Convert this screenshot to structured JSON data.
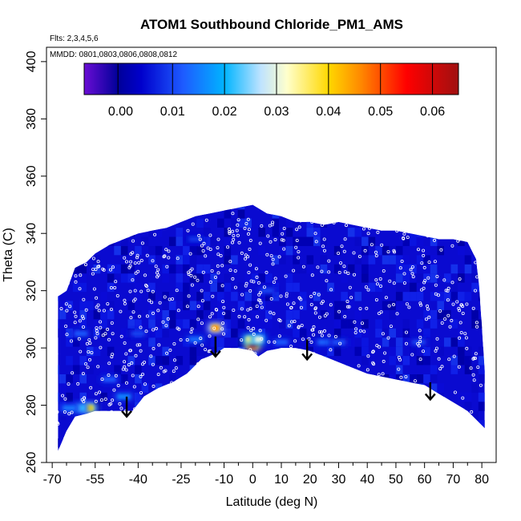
{
  "chart_data": {
    "type": "heatmap",
    "title": "ATOM1 Southbound Chloride_PM1_AMS",
    "flights_note": "Flts: 2,3,4,5,6",
    "dates_note": "MMDD: 0801,0803,0806,0808,0812",
    "xlabel": "Latitude (deg N)",
    "ylabel": "Theta (C)",
    "xlim": [
      -72,
      85
    ],
    "ylim": [
      260,
      405
    ],
    "x_ticks_major": [
      -70,
      -55,
      -40,
      -25,
      -10,
      0,
      10,
      20,
      30,
      40,
      50,
      60,
      70,
      80
    ],
    "x_tick_labels": [
      "-70",
      "-55",
      "-40",
      "-25",
      "-10",
      "0",
      "10",
      "20",
      "30",
      "40",
      "50",
      "60",
      "70",
      "80"
    ],
    "x_ticks_minor": [
      -65,
      -60,
      -50,
      -45,
      -35,
      -30,
      -20,
      -15,
      -5,
      5,
      15,
      25,
      35,
      45,
      55,
      65,
      75
    ],
    "y_ticks": [
      260,
      280,
      300,
      320,
      340,
      360,
      380,
      400
    ],
    "y_tick_labels": [
      "260",
      "280",
      "300",
      "320",
      "340",
      "360",
      "380",
      "400"
    ],
    "colorbar": {
      "range": [
        -0.007,
        0.065
      ],
      "ticks": [
        0.0,
        0.01,
        0.02,
        0.03,
        0.04,
        0.05,
        0.06
      ],
      "tick_labels": [
        "0.00",
        "0.01",
        "0.02",
        "0.03",
        "0.04",
        "0.05",
        "0.06"
      ],
      "divisions": [
        -0.0005,
        0.01,
        0.02,
        0.03,
        0.04,
        0.05,
        0.06
      ],
      "colors": [
        "#6a0dd4",
        "#000099",
        "#0000cc",
        "#1e5bff",
        "#00b4ff",
        "#bfe3ff",
        "#ffffcc",
        "#ffd800",
        "#ff8c00",
        "#ff0000",
        "#a01010"
      ],
      "color_stops": [
        -0.007,
        -0.0005,
        0.004,
        0.012,
        0.02,
        0.027,
        0.032,
        0.04,
        0.046,
        0.055,
        0.065
      ]
    },
    "domain_top": [
      [
        -68,
        318
      ],
      [
        -65,
        320
      ],
      [
        -62,
        328
      ],
      [
        -58,
        330
      ],
      [
        -55,
        333
      ],
      [
        -50,
        336
      ],
      [
        -45,
        338
      ],
      [
        -40,
        340
      ],
      [
        -35,
        341
      ],
      [
        -30,
        342
      ],
      [
        -25,
        344
      ],
      [
        -20,
        346
      ],
      [
        -15,
        347
      ],
      [
        -10,
        348
      ],
      [
        -5,
        349
      ],
      [
        0,
        350
      ],
      [
        5,
        347
      ],
      [
        10,
        346
      ],
      [
        15,
        344
      ],
      [
        20,
        344
      ],
      [
        25,
        343
      ],
      [
        30,
        344
      ],
      [
        35,
        343
      ],
      [
        40,
        342
      ],
      [
        45,
        341
      ],
      [
        50,
        341
      ],
      [
        55,
        340
      ],
      [
        60,
        339
      ],
      [
        65,
        338
      ],
      [
        70,
        338
      ],
      [
        75,
        337
      ],
      [
        78,
        331
      ],
      [
        79,
        322
      ],
      [
        80,
        308
      ],
      [
        81,
        292
      ],
      [
        81,
        272
      ]
    ],
    "domain_bottom": [
      [
        -68,
        264
      ],
      [
        -65,
        271
      ],
      [
        -62,
        276
      ],
      [
        -58,
        277
      ],
      [
        -55,
        278
      ],
      [
        -50,
        278
      ],
      [
        -45,
        278
      ],
      [
        -42,
        278
      ],
      [
        -38,
        283
      ],
      [
        -33,
        286
      ],
      [
        -28,
        288
      ],
      [
        -23,
        291
      ],
      [
        -18,
        296
      ],
      [
        -13,
        298
      ],
      [
        -10,
        300
      ],
      [
        -5,
        300
      ],
      [
        0,
        299
      ],
      [
        2,
        297
      ],
      [
        5,
        299
      ],
      [
        10,
        300
      ],
      [
        15,
        300
      ],
      [
        20,
        299
      ],
      [
        25,
        297
      ],
      [
        30,
        295
      ],
      [
        35,
        293
      ],
      [
        40,
        291
      ],
      [
        45,
        290
      ],
      [
        50,
        289
      ],
      [
        55,
        288
      ],
      [
        60,
        287
      ],
      [
        65,
        284
      ],
      [
        70,
        281
      ],
      [
        75,
        278
      ],
      [
        78,
        275
      ],
      [
        81,
        272
      ]
    ],
    "hotspots": [
      {
        "lat": 0,
        "theta": 301,
        "value": 0.062
      },
      {
        "lat": -1,
        "theta": 303,
        "value": 0.035
      },
      {
        "lat": 2,
        "theta": 303,
        "value": 0.03
      },
      {
        "lat": -13,
        "theta": 307,
        "value": 0.045
      },
      {
        "lat": -57,
        "theta": 279,
        "value": 0.04
      },
      {
        "lat": -60,
        "theta": 279,
        "value": 0.022
      },
      {
        "lat": -64,
        "theta": 279,
        "value": 0.015
      },
      {
        "lat": -45,
        "theta": 283,
        "value": 0.016
      },
      {
        "lat": -50,
        "theta": 289,
        "value": 0.012
      },
      {
        "lat": -20,
        "theta": 303,
        "value": 0.014
      },
      {
        "lat": 25,
        "theta": 302,
        "value": 0.013
      },
      {
        "lat": 30,
        "theta": 302,
        "value": 0.011
      },
      {
        "lat": 10,
        "theta": 302,
        "value": 0.012
      },
      {
        "lat": -60,
        "theta": 305,
        "value": 0.012
      },
      {
        "lat": -40,
        "theta": 305,
        "value": 0.01
      },
      {
        "lat": 58,
        "theta": 302,
        "value": 0.01
      },
      {
        "lat": 5,
        "theta": 320,
        "value": 0.01
      },
      {
        "lat": -20,
        "theta": 338,
        "value": 0.009
      }
    ],
    "arrows": [
      {
        "lat": -44,
        "theta_top": 283,
        "theta_bottom": 276
      },
      {
        "lat": -13,
        "theta_top": 304,
        "theta_bottom": 297
      },
      {
        "lat": 19,
        "theta_top": 303,
        "theta_bottom": 296
      },
      {
        "lat": 62,
        "theta_top": 288,
        "theta_bottom": 282
      }
    ],
    "flight_tracks_note": "White circles mark aircraft sample locations"
  }
}
